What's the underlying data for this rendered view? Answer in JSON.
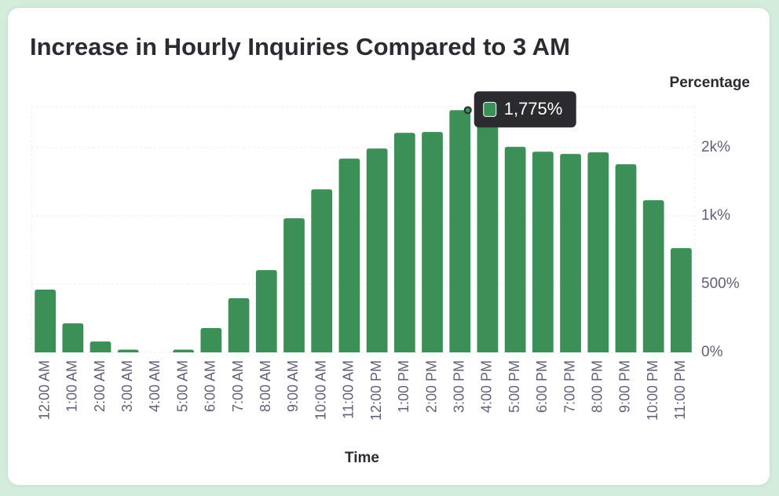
{
  "chart_data": {
    "type": "bar",
    "title": "Increase in Hourly Inquiries Compared to 3 AM",
    "x_label": "Time",
    "y_label": "Percentage",
    "categories": [
      "12:00 AM",
      "1:00 AM",
      "2:00 AM",
      "3:00 AM",
      "4:00 AM",
      "5:00 AM",
      "6:00 AM",
      "7:00 AM",
      "8:00 AM",
      "9:00 AM",
      "10:00 AM",
      "11:00 AM",
      "12:00 PM",
      "1:00 PM",
      "2:00 PM",
      "3:00 PM",
      "4:00 PM",
      "5:00 PM",
      "6:00 PM",
      "7:00 PM",
      "8:00 PM",
      "9:00 PM",
      "10:00 PM",
      "11:00 PM"
    ],
    "values": [
      460,
      213,
      80,
      20,
      0,
      20,
      178,
      397,
      603,
      983,
      1195,
      1420,
      1494,
      1609,
      1615,
      1775,
      1700,
      1506,
      1471,
      1454,
      1466,
      1379,
      1115,
      764
    ],
    "color": "#3d8f58",
    "ylim": [
      0,
      1800
    ],
    "yticks": [
      {
        "value": 0,
        "label": "0%"
      },
      {
        "value": 500,
        "label": "500%"
      },
      {
        "value": 1000,
        "label": "1k%"
      },
      {
        "value": 1500,
        "label": "2k%"
      }
    ],
    "grid": true,
    "tooltip": "1,775%"
  }
}
